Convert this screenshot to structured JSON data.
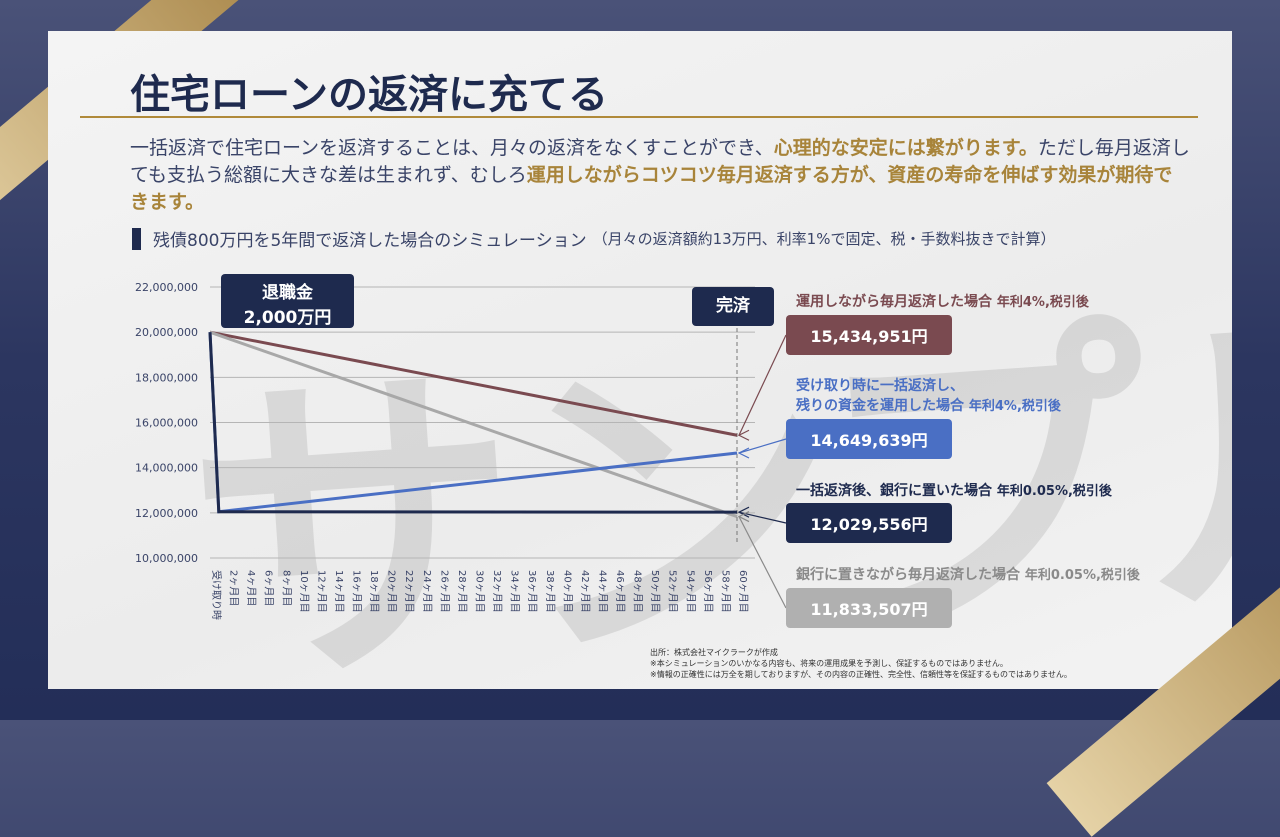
{
  "title": "住宅ローンの返済に充てる",
  "lead": {
    "p1": "一括返済で住宅ローンを返済することは、月々の返済をなくすことができ、",
    "h1": "心理的な安定には繋がります。",
    "p2": "ただし毎月返済しても支払う総額に大きな差は生まれず、むしろ",
    "h2": "運用しながらコツコツ毎月返済する方が、資産の寿命を伸ばす効果が期待できます。"
  },
  "subtitle": "残債800万円を5年間で返済した場合のシミュレーション",
  "subtitle_note": "（月々の返済額約13万円、利率1%で固定、税・手数料抜きで計算）",
  "tag_retire": {
    "line1": "退職金",
    "line2": "2,000万円"
  },
  "tag_done": "完済",
  "watermark": "サンプル",
  "legend": [
    {
      "label": "運用しながら毎月返済した場合",
      "rate": "年利4%,税引後",
      "value": "15,434,951円",
      "color": "#7a4a50"
    },
    {
      "label": "受け取り時に一括返済し、",
      "label2": "残りの資金を運用した場合",
      "rate": "年利4%,税引後",
      "value": "14,649,639円",
      "color": "#4a6fc4"
    },
    {
      "label": "一括返済後、銀行に置いた場合",
      "rate": "年利0.05%,税引後",
      "value": "12,029,556円",
      "color": "#1e2a4e"
    },
    {
      "label": "銀行に置きながら毎月返済した場合",
      "rate": "年利0.05%,税引後",
      "value": "11,833,507円",
      "color": "#a8a8a8"
    }
  ],
  "notes": [
    "出所：株式会社マイクラークが作成",
    "※本シミュレーションのいかなる内容も、将来の運用成果を予測し、保証するものではありません。",
    "※情報の正確性には万全を期しておりますが、その内容の正確性、完全性、信頼性等を保証するものではありません。"
  ],
  "chart_data": {
    "type": "line",
    "ylim": [
      10000000,
      22000000
    ],
    "yticks": [
      "22,000,000",
      "20,000,000",
      "18,000,000",
      "16,000,000",
      "14,000,000",
      "12,000,000",
      "10,000,000"
    ],
    "xlabels": [
      "受け取り時",
      "2ヶ月目",
      "4ヶ月目",
      "6ヶ月目",
      "8ヶ月目",
      "10ヶ月目",
      "12ヶ月目",
      "14ヶ月目",
      "16ヶ月目",
      "18ヶ月目",
      "20ヶ月目",
      "22ヶ月目",
      "24ヶ月目",
      "26ヶ月目",
      "28ヶ月目",
      "30ヶ月目",
      "32ヶ月目",
      "34ヶ月目",
      "36ヶ月目",
      "38ヶ月目",
      "40ヶ月目",
      "42ヶ月目",
      "44ヶ月目",
      "46ヶ月目",
      "48ヶ月目",
      "50ヶ月目",
      "52ヶ月目",
      "54ヶ月目",
      "56ヶ月目",
      "58ヶ月目",
      "60ヶ月目"
    ],
    "series": [
      {
        "name": "運用しながら毎月返済",
        "color": "#7a4a50",
        "points": [
          [
            0,
            20000000
          ],
          [
            60,
            15434951
          ]
        ]
      },
      {
        "name": "銀行に置きながら毎月返済",
        "color": "#a8a8a8",
        "points": [
          [
            0,
            20000000
          ],
          [
            60,
            11833507
          ]
        ]
      },
      {
        "name": "一括返済後運用",
        "color": "#4a6fc4",
        "points": [
          [
            0,
            20000000
          ],
          [
            1,
            12050000
          ],
          [
            60,
            14649639
          ]
        ]
      },
      {
        "name": "一括返済後銀行",
        "color": "#1e2a4e",
        "points": [
          [
            0,
            20000000
          ],
          [
            1,
            12050000
          ],
          [
            60,
            12029556
          ]
        ]
      }
    ]
  }
}
